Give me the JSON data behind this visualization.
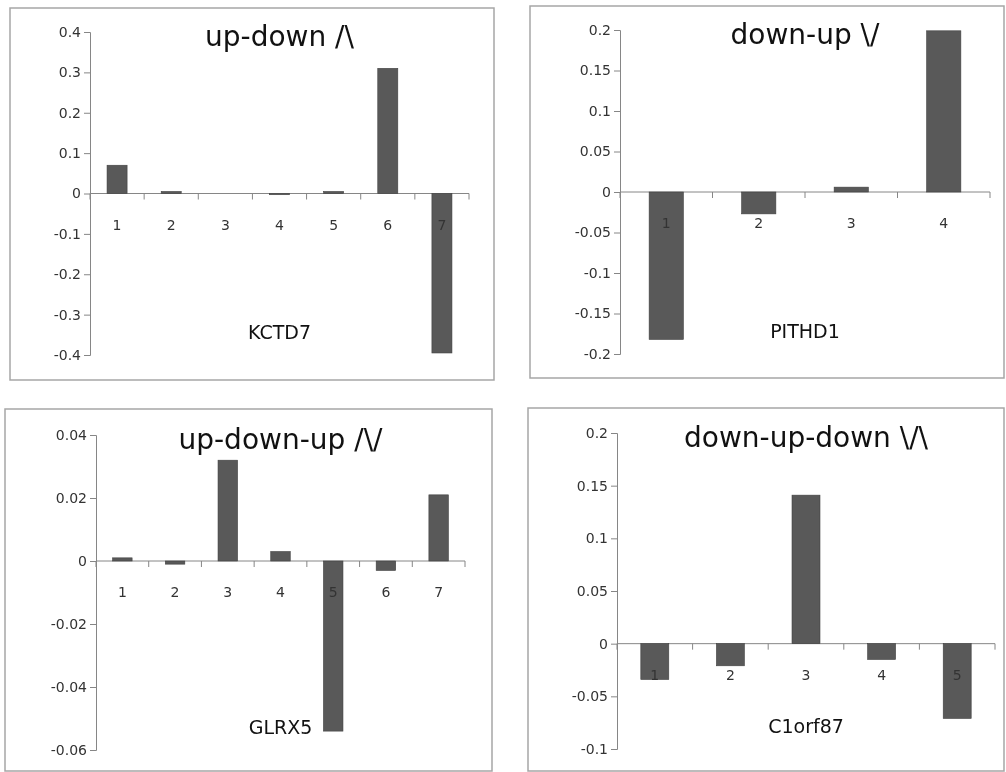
{
  "chart_data": [
    {
      "type": "bar",
      "title": "up-down /\\",
      "xlabel": "KCTD7",
      "categories": [
        "1",
        "2",
        "3",
        "4",
        "5",
        "6",
        "7"
      ],
      "values": [
        0.07,
        0.005,
        0,
        -0.003,
        0.005,
        0.31,
        -0.395
      ],
      "color": "#595959",
      "ylim": [
        -0.4,
        0.4
      ],
      "yticks": [
        -0.4,
        -0.3,
        -0.2,
        -0.1,
        0,
        0.1,
        0.2,
        0.3,
        0.4
      ],
      "grid": false
    },
    {
      "type": "bar",
      "title": "down-up \\/",
      "xlabel": "PITHD1",
      "categories": [
        "1",
        "2",
        "3",
        "4"
      ],
      "values": [
        -0.182,
        -0.027,
        0.006,
        0.199
      ],
      "color": "#595959",
      "ylim": [
        -0.2,
        0.2
      ],
      "yticks": [
        -0.2,
        -0.15,
        -0.1,
        -0.05,
        0,
        0.05,
        0.1,
        0.15,
        0.2
      ],
      "grid": false
    },
    {
      "type": "bar",
      "title": "up-down-up /\\/",
      "xlabel": "GLRX5",
      "categories": [
        "1",
        "2",
        "3",
        "4",
        "5",
        "6",
        "7"
      ],
      "values": [
        0.001,
        -0.001,
        0.032,
        0.003,
        -0.054,
        -0.003,
        0.021
      ],
      "color": "#595959",
      "ylim": [
        -0.06,
        0.04
      ],
      "yticks": [
        -0.06,
        -0.04,
        -0.02,
        0,
        0.02,
        0.04
      ],
      "grid": false
    },
    {
      "type": "bar",
      "title": "down-up-down \\/\\",
      "xlabel": "C1orf87",
      "categories": [
        "1",
        "2",
        "3",
        "4",
        "5"
      ],
      "values": [
        -0.034,
        -0.021,
        0.141,
        -0.015,
        -0.071
      ],
      "color": "#595959",
      "ylim": [
        -0.1,
        0.2
      ],
      "yticks": [
        -0.1,
        -0.05,
        0,
        0.05,
        0.1,
        0.15,
        0.2
      ],
      "grid": false
    }
  ]
}
